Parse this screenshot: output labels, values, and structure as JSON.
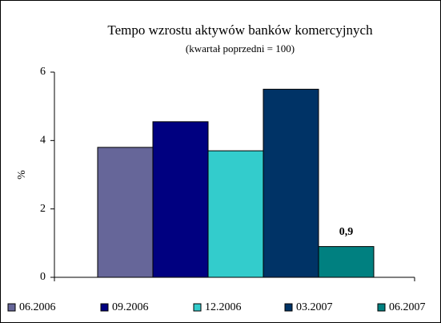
{
  "chart_data": {
    "type": "bar",
    "title": "Tempo wzrostu aktywów banków komercyjnych",
    "subtitle": "(kwartał poprzedni = 100)",
    "y_label": "%",
    "series": [
      {
        "name": "06.2006",
        "color": "#666699",
        "values": [
          3.8
        ]
      },
      {
        "name": "09.2006",
        "color": "#000080",
        "values": [
          4.55
        ]
      },
      {
        "name": "12.2006",
        "color": "#33cccc",
        "values": [
          3.7
        ]
      },
      {
        "name": "03.2007",
        "color": "#003366",
        "values": [
          5.5
        ]
      },
      {
        "name": "06.2007",
        "color": "#008080",
        "values": [
          0.9
        ],
        "value_labels": [
          "0,9"
        ]
      }
    ],
    "ylim": [
      0,
      6
    ],
    "yticks": [
      0,
      2,
      4,
      6
    ],
    "legend": "bottom"
  }
}
